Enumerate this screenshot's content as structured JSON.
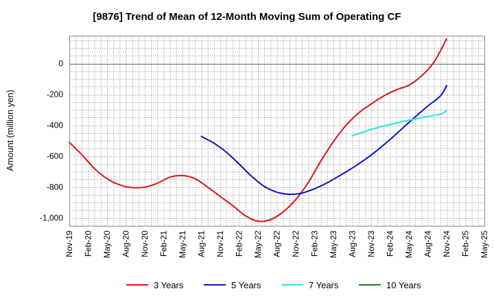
{
  "chart_data": {
    "type": "line",
    "title": "[9876]  Trend of Mean of 12-Month Moving Sum of Operating CF",
    "xlabel": "",
    "ylabel": "Amount (million yen)",
    "ylim": [
      -1050,
      180
    ],
    "yticks": [
      0,
      -200,
      -400,
      -600,
      -800,
      -1000
    ],
    "ytick_labels": [
      "0",
      "-200",
      "-400",
      "-600",
      "-800",
      "-1,000"
    ],
    "x_start": "2019-11",
    "x_end": "2025-05",
    "xtick_labels": [
      "Nov-19",
      "Feb-20",
      "May-20",
      "Aug-20",
      "Nov-20",
      "Feb-21",
      "May-21",
      "Aug-21",
      "Nov-21",
      "Feb-22",
      "May-22",
      "Aug-22",
      "Nov-22",
      "Feb-23",
      "May-23",
      "Aug-23",
      "Nov-23",
      "Feb-24",
      "May-24",
      "Aug-24",
      "Nov-24",
      "Feb-25",
      "May-25"
    ],
    "grid": true,
    "legend_position": "bottom",
    "series": [
      {
        "name": "3 Years",
        "color": "#dd1111",
        "points": [
          [
            "2019-11",
            -510
          ],
          [
            "2020-01",
            -590
          ],
          [
            "2020-03",
            -680
          ],
          [
            "2020-05",
            -745
          ],
          [
            "2020-07",
            -785
          ],
          [
            "2020-09",
            -803
          ],
          [
            "2020-11",
            -800
          ],
          [
            "2021-01",
            -775
          ],
          [
            "2021-03",
            -735
          ],
          [
            "2021-05",
            -725
          ],
          [
            "2021-07",
            -745
          ],
          [
            "2021-09",
            -800
          ],
          [
            "2021-11",
            -860
          ],
          [
            "2022-01",
            -920
          ],
          [
            "2022-03",
            -985
          ],
          [
            "2022-05",
            -1020
          ],
          [
            "2022-07",
            -1010
          ],
          [
            "2022-09",
            -960
          ],
          [
            "2022-11",
            -880
          ],
          [
            "2023-01",
            -770
          ],
          [
            "2023-03",
            -630
          ],
          [
            "2023-05",
            -505
          ],
          [
            "2023-07",
            -400
          ],
          [
            "2023-09",
            -320
          ],
          [
            "2023-11",
            -262
          ],
          [
            "2024-01",
            -210
          ],
          [
            "2024-03",
            -170
          ],
          [
            "2024-05",
            -140
          ],
          [
            "2024-07",
            -80
          ],
          [
            "2024-09",
            10
          ],
          [
            "2024-11",
            160
          ]
        ]
      },
      {
        "name": "5 Years",
        "color": "#0a10c8",
        "points": [
          [
            "2021-08",
            -472
          ],
          [
            "2021-10",
            -515
          ],
          [
            "2021-12",
            -575
          ],
          [
            "2022-02",
            -650
          ],
          [
            "2022-04",
            -730
          ],
          [
            "2022-06",
            -795
          ],
          [
            "2022-08",
            -832
          ],
          [
            "2022-10",
            -846
          ],
          [
            "2022-12",
            -838
          ],
          [
            "2023-02",
            -810
          ],
          [
            "2023-04",
            -772
          ],
          [
            "2023-06",
            -725
          ],
          [
            "2023-08",
            -676
          ],
          [
            "2023-10",
            -622
          ],
          [
            "2023-12",
            -560
          ],
          [
            "2024-02",
            -492
          ],
          [
            "2024-04",
            -418
          ],
          [
            "2024-06",
            -345
          ],
          [
            "2024-08",
            -275
          ],
          [
            "2024-10",
            -210
          ],
          [
            "2024-11",
            -143
          ]
        ]
      },
      {
        "name": "7 Years",
        "color": "#22e8ee",
        "points": [
          [
            "2023-08",
            -468
          ],
          [
            "2023-10",
            -440
          ],
          [
            "2023-12",
            -415
          ],
          [
            "2024-02",
            -395
          ],
          [
            "2024-04",
            -375
          ],
          [
            "2024-06",
            -358
          ],
          [
            "2024-08",
            -342
          ],
          [
            "2024-10",
            -328
          ],
          [
            "2024-11",
            -305
          ]
        ]
      },
      {
        "name": "10 Years",
        "color": "#1e7a1e",
        "points": []
      }
    ]
  }
}
